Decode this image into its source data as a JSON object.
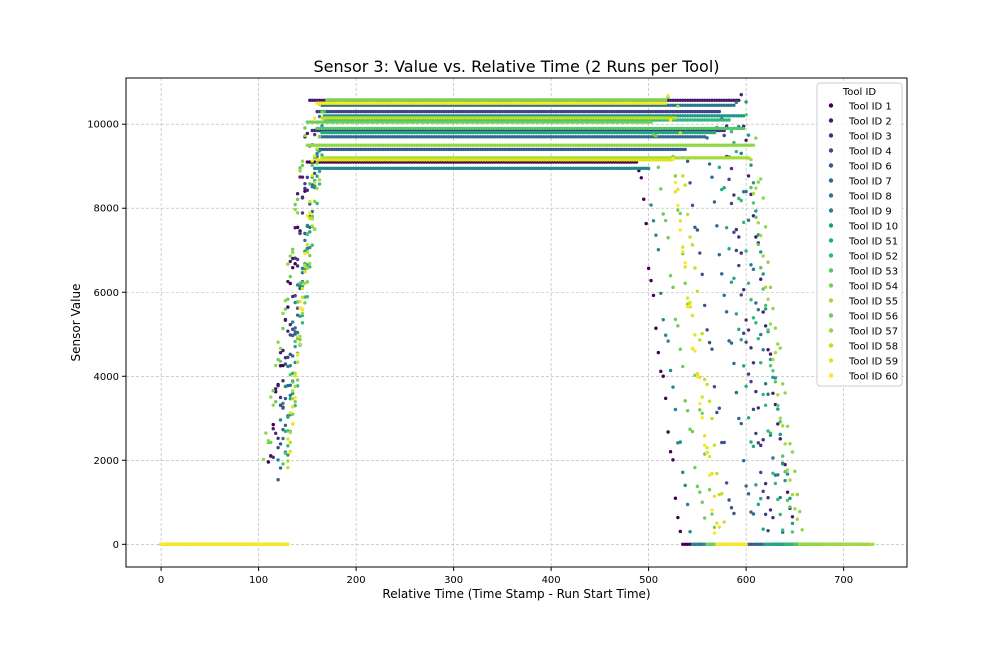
{
  "chart_data": {
    "type": "scatter",
    "title": "Sensor 3: Value vs. Relative Time (2 Runs per Tool)",
    "xlabel": "Relative Time (Time Stamp - Run Start Time)",
    "ylabel": "Sensor Value",
    "xlim": [
      -36,
      765
    ],
    "ylim": [
      -540,
      11100
    ],
    "xticks": [
      0,
      100,
      200,
      300,
      400,
      500,
      600,
      700
    ],
    "yticks": [
      0,
      2000,
      4000,
      6000,
      8000,
      10000
    ],
    "grid": true,
    "legend": {
      "title": "Tool ID",
      "placement": "top-right"
    },
    "series": [
      {
        "name": "Tool ID 1",
        "color": "#440154",
        "profile": {
          "rise_start": 110,
          "rise_end": 150,
          "plateau": 9100,
          "fall_start": 490,
          "fall_end": 535,
          "end": 555
        }
      },
      {
        "name": "Tool ID 2",
        "color": "#481a6c",
        "profile": {
          "rise_start": 112,
          "rise_end": 152,
          "plateau": 10570,
          "fall_start": 595,
          "fall_end": 650,
          "end": 670
        }
      },
      {
        "name": "Tool ID 3",
        "color": "#472f7d",
        "profile": {
          "rise_start": 115,
          "rise_end": 155,
          "plateau": 9850,
          "fall_start": 580,
          "fall_end": 630,
          "end": 655
        }
      },
      {
        "name": "Tool ID 4",
        "color": "#414487",
        "profile": {
          "rise_start": 118,
          "rise_end": 158,
          "plateau": 10300,
          "fall_start": 575,
          "fall_end": 625,
          "end": 650
        }
      },
      {
        "name": "Tool ID 6",
        "color": "#39568c",
        "profile": {
          "rise_start": 120,
          "rise_end": 160,
          "plateau": 9400,
          "fall_start": 540,
          "fall_end": 590,
          "end": 615
        }
      },
      {
        "name": "Tool ID 7",
        "color": "#31688e",
        "profile": {
          "rise_start": 122,
          "rise_end": 162,
          "plateau": 9700,
          "fall_start": 560,
          "fall_end": 610,
          "end": 640
        }
      },
      {
        "name": "Tool ID 8",
        "color": "#2a788e",
        "profile": {
          "rise_start": 125,
          "rise_end": 165,
          "plateau": 10450,
          "fall_start": 590,
          "fall_end": 640,
          "end": 725
        }
      },
      {
        "name": "Tool ID 9",
        "color": "#23888e",
        "profile": {
          "rise_start": 118,
          "rise_end": 156,
          "plateau": 8950,
          "fall_start": 500,
          "fall_end": 545,
          "end": 570
        }
      },
      {
        "name": "Tool ID 10",
        "color": "#1f988b",
        "profile": {
          "rise_start": 128,
          "rise_end": 166,
          "plateau": 10200,
          "fall_start": 600,
          "fall_end": 650,
          "end": 700
        }
      },
      {
        "name": "Tool ID 51",
        "color": "#22a884",
        "profile": {
          "rise_start": 126,
          "rise_end": 165,
          "plateau": 9800,
          "fall_start": 570,
          "fall_end": 620,
          "end": 645
        }
      },
      {
        "name": "Tool ID 52",
        "color": "#35b779",
        "profile": {
          "rise_start": 130,
          "rise_end": 168,
          "plateau": 10100,
          "fall_start": 585,
          "fall_end": 640,
          "end": 665
        }
      },
      {
        "name": "Tool ID 53",
        "color": "#54c568",
        "profile": {
          "rise_start": 125,
          "rise_end": 160,
          "plateau": 9900,
          "fall_start": 600,
          "fall_end": 650,
          "end": 720
        }
      },
      {
        "name": "Tool ID 54",
        "color": "#7ad151",
        "profile": {
          "rise_start": 132,
          "rise_end": 168,
          "plateau": 10580,
          "fall_start": 520,
          "fall_end": 570,
          "end": 590
        }
      },
      {
        "name": "Tool ID 55",
        "color": "#a5db36",
        "profile": {
          "rise_start": 128,
          "rise_end": 164,
          "plateau": 9200,
          "fall_start": 605,
          "fall_end": 655,
          "end": 730
        }
      },
      {
        "name": "Tool ID 56",
        "color": "#6ccd5a",
        "profile": {
          "rise_start": 108,
          "rise_end": 150,
          "plateau": 10050,
          "fall_start": 505,
          "fall_end": 560,
          "end": 580
        }
      },
      {
        "name": "Tool ID 57",
        "color": "#8fd744",
        "profile": {
          "rise_start": 105,
          "rise_end": 148,
          "plateau": 9500,
          "fall_start": 610,
          "fall_end": 660,
          "end": 675
        }
      },
      {
        "name": "Tool ID 58",
        "color": "#c2df23",
        "profile": {
          "rise_start": 130,
          "rise_end": 163,
          "plateau": 10150,
          "fall_start": 530,
          "fall_end": 580,
          "end": 600
        }
      },
      {
        "name": "Tool ID 59",
        "color": "#e2e418",
        "profile": {
          "rise_start": 128,
          "rise_end": 158,
          "plateau": 9150,
          "fall_start": 525,
          "fall_end": 575,
          "end": 595
        }
      },
      {
        "name": "Tool ID 60",
        "color": "#fde725",
        "profile": {
          "rise_start": 132,
          "rise_end": 160,
          "plateau": 10500,
          "fall_start": 520,
          "fall_end": 570,
          "end": 600
        }
      }
    ]
  }
}
